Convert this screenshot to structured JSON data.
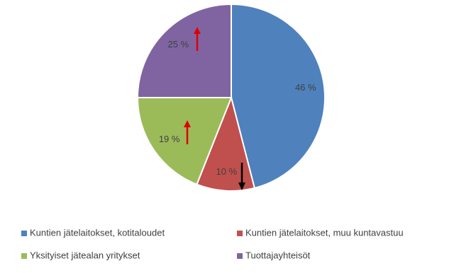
{
  "chart_data": {
    "type": "pie",
    "categories": [
      "Kuntien jätelaitokset, kotitaloudet",
      "Kuntien jätelaitokset, muu kuntavastuu",
      "Yksityiset jätealan yritykset",
      "Tuottajayhteisöt"
    ],
    "values": [
      46,
      10,
      19,
      25
    ],
    "value_labels": [
      "46 %",
      "10 %",
      "19 %",
      "25 %"
    ],
    "colors": [
      "#4f81bd",
      "#c0504d",
      "#9bbb59",
      "#8064a2"
    ],
    "legend": "bottom"
  }
}
